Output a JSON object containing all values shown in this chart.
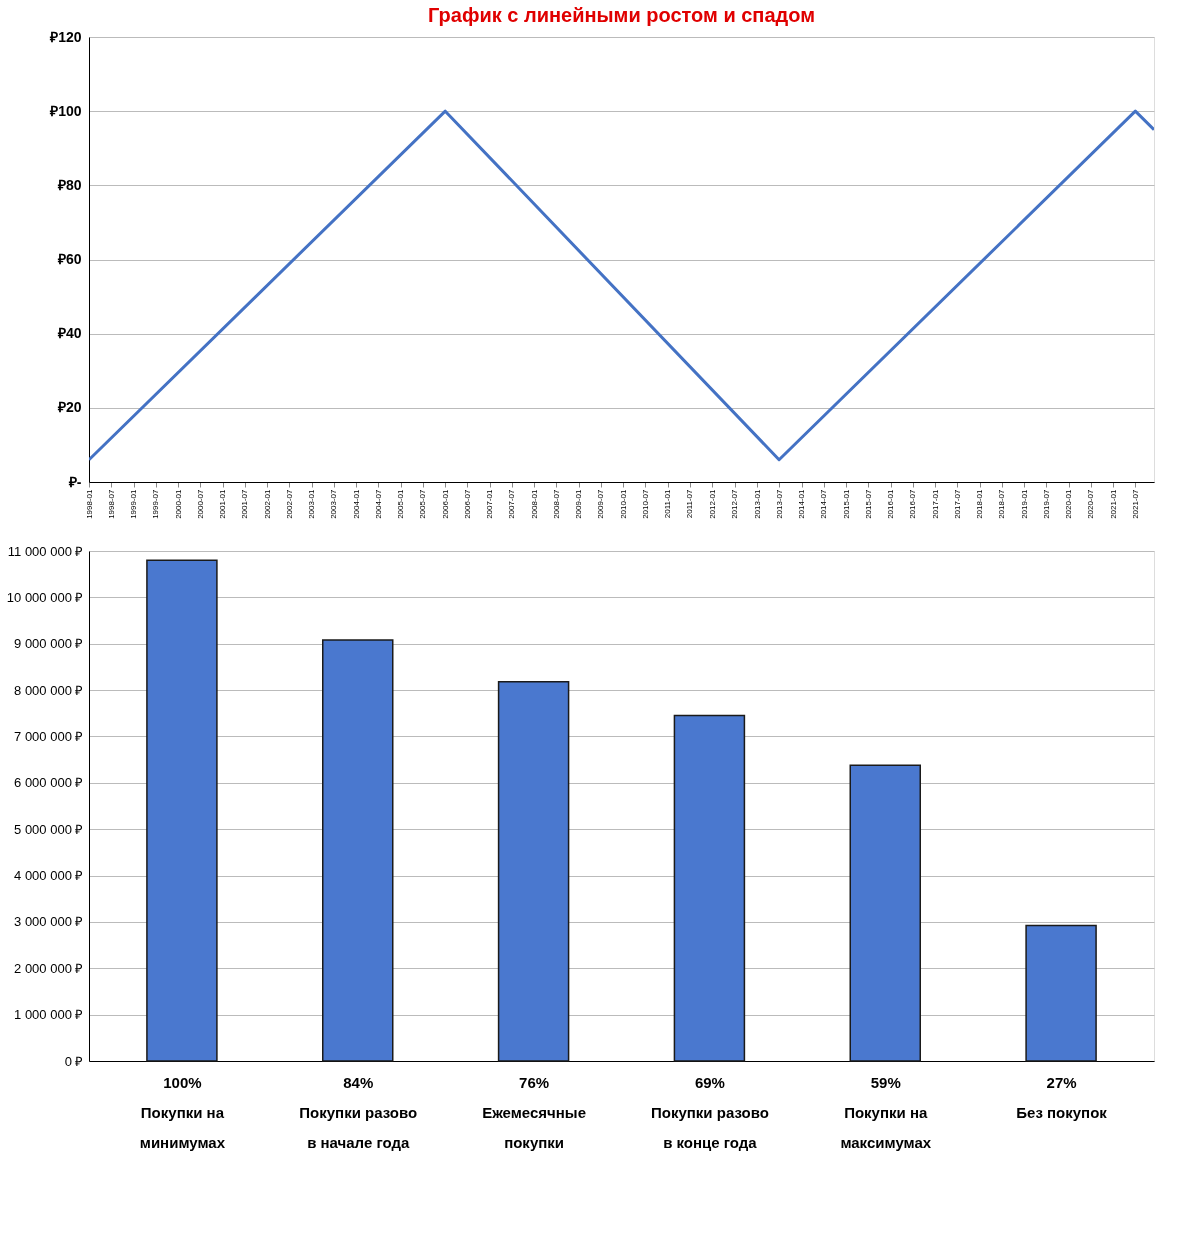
{
  "chart_data": [
    {
      "type": "line",
      "title": "График с линейными ростом и спадом",
      "x": [
        "1998-01",
        "2006-01",
        "2013-07",
        "2021-07",
        "2021-12"
      ],
      "series": [
        {
          "color": "#4472c4",
          "values": [
            6,
            100,
            6,
            100,
            95
          ]
        }
      ],
      "xlim": [
        "1998-01",
        "2021-12"
      ],
      "xticks": [
        "1998-01",
        "1998-07",
        "1999-01",
        "1999-07",
        "2000-01",
        "2000-07",
        "2001-01",
        "2001-07",
        "2002-01",
        "2002-07",
        "2003-01",
        "2003-07",
        "2004-01",
        "2004-07",
        "2005-01",
        "2005-07",
        "2006-01",
        "2006-07",
        "2007-01",
        "2007-07",
        "2008-01",
        "2008-07",
        "2009-01",
        "2009-07",
        "2010-01",
        "2010-07",
        "2011-01",
        "2011-07",
        "2012-01",
        "2012-07",
        "2013-01",
        "2013-07",
        "2014-01",
        "2014-07",
        "2015-01",
        "2015-07",
        "2016-01",
        "2016-07",
        "2017-01",
        "2017-07",
        "2018-01",
        "2018-07",
        "2019-01",
        "2019-07",
        "2020-01",
        "2020-07",
        "2021-01",
        "2021-07"
      ],
      "ylim": [
        0,
        120
      ],
      "yticks": [
        {
          "value": 0,
          "label": "₽-"
        },
        {
          "value": 20,
          "label": "₽20"
        },
        {
          "value": 40,
          "label": "₽40"
        },
        {
          "value": 60,
          "label": "₽60"
        },
        {
          "value": 80,
          "label": "₽80"
        },
        {
          "value": 100,
          "label": "₽100"
        },
        {
          "value": 120,
          "label": "₽120"
        }
      ],
      "grid": "y",
      "marker": "none",
      "line_style": "solid"
    },
    {
      "type": "bar",
      "categories": [
        "100%\nПокупки на\nминимумах",
        "84%\nПокупки разово\nв начале года",
        "76%\nЕжемесячные\nпокупки",
        "69%\nПокупки разово\nв конце года",
        "59%\nПокупки на\nмаксимумах",
        "27%\nБез покупок"
      ],
      "series": [
        {
          "color": "#4a78cf",
          "values": [
            10800000,
            9080000,
            8180000,
            7450000,
            6380000,
            2920000
          ]
        }
      ],
      "ylim": [
        0,
        11000000
      ],
      "yticks": [
        {
          "value": 0,
          "label": "0 ₽"
        },
        {
          "value": 1000000,
          "label": "1 000 000 ₽"
        },
        {
          "value": 2000000,
          "label": "2 000 000 ₽"
        },
        {
          "value": 3000000,
          "label": "3 000 000 ₽"
        },
        {
          "value": 4000000,
          "label": "4 000 000 ₽"
        },
        {
          "value": 5000000,
          "label": "5 000 000 ₽"
        },
        {
          "value": 6000000,
          "label": "6 000 000 ₽"
        },
        {
          "value": 7000000,
          "label": "7 000 000 ₽"
        },
        {
          "value": 8000000,
          "label": "8 000 000 ₽"
        },
        {
          "value": 9000000,
          "label": "9 000 000 ₽"
        },
        {
          "value": 10000000,
          "label": "10 000 000 ₽"
        },
        {
          "value": 11000000,
          "label": "11 000 000 ₽"
        }
      ],
      "grid": "y"
    }
  ]
}
